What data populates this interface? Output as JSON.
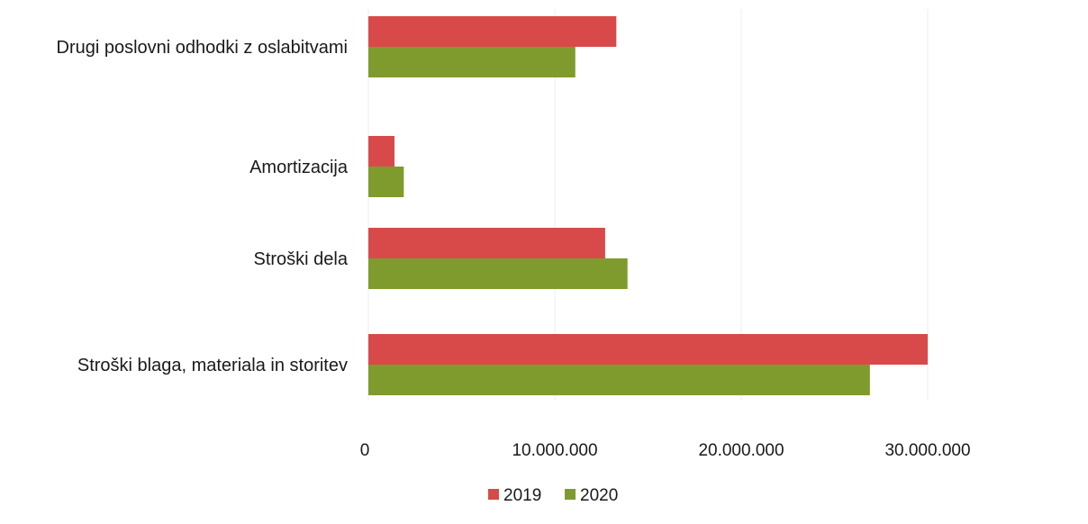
{
  "chart_data": {
    "type": "bar",
    "orientation": "horizontal",
    "categories": [
      "Drugi poslovni odhodki z oslabitvami",
      "Amortizacija",
      "Stroški dela",
      "Stroški blaga, materiala in storitev"
    ],
    "series": [
      {
        "name": "2019",
        "color": "#d84a4a",
        "values": [
          13300000,
          1400000,
          12700000,
          30000000
        ]
      },
      {
        "name": "2020",
        "color": "#7f9b2e",
        "values": [
          11100000,
          1900000,
          13900000,
          26900000
        ]
      }
    ],
    "xlim": [
      0,
      40000000
    ],
    "x_ticks": [
      {
        "value": 0,
        "label": "0"
      },
      {
        "value": 10000000,
        "label": "10.000.000"
      },
      {
        "value": 20000000,
        "label": "20.000.000"
      },
      {
        "value": 30000000,
        "label": "30.000.000"
      }
    ],
    "title": "",
    "xlabel": "",
    "ylabel": "",
    "grid": false,
    "legend_position": "bottom"
  }
}
